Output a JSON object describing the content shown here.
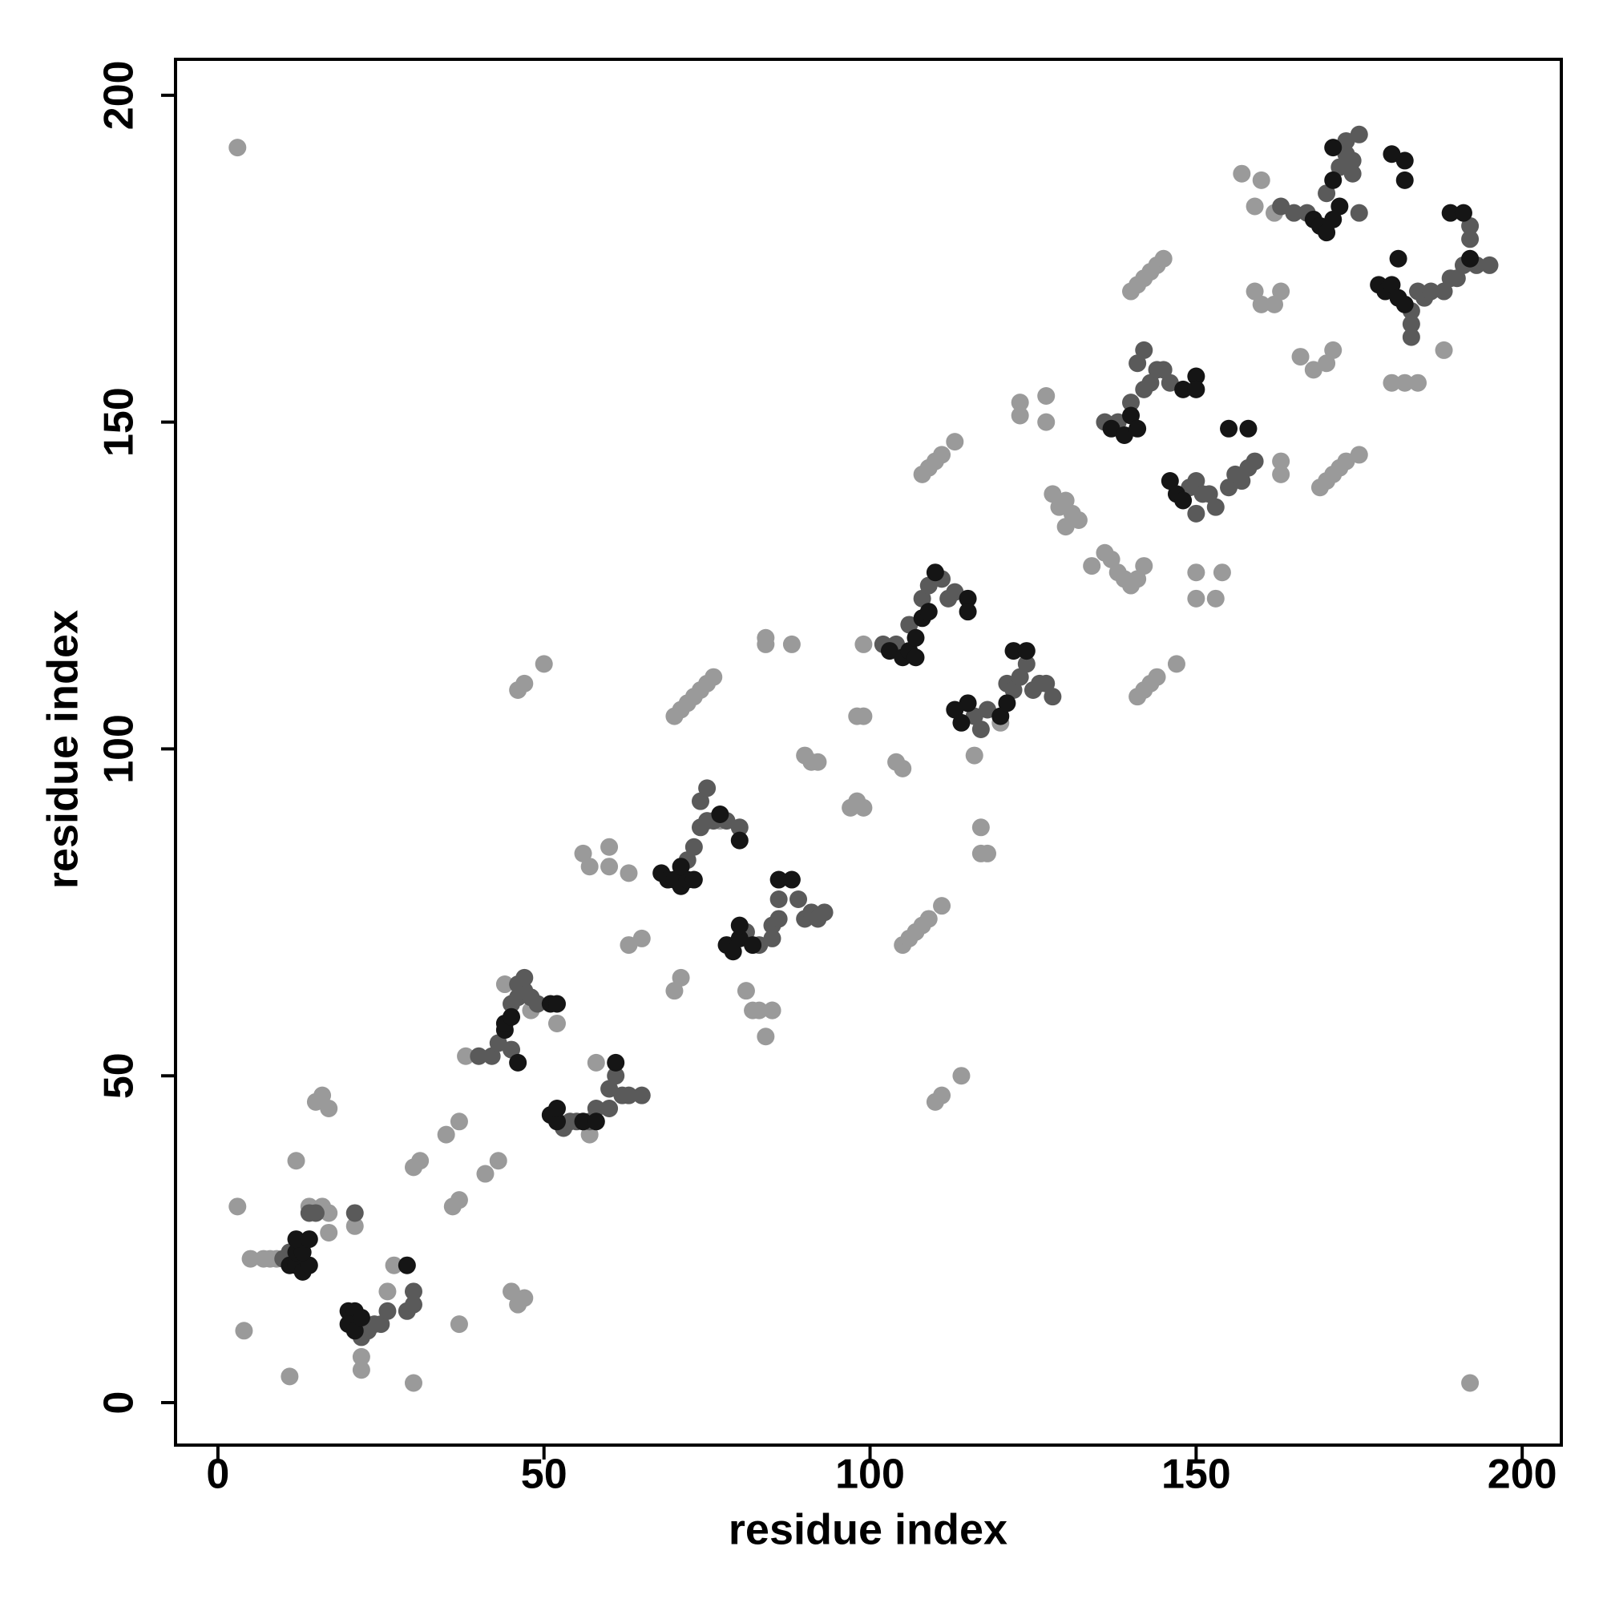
{
  "chart_data": {
    "type": "scatter",
    "xlabel": "residue index",
    "ylabel": "residue index",
    "xlim": [
      -6.5,
      206
    ],
    "ylim": [
      -6.5,
      205.5
    ],
    "xticks": [
      0,
      50,
      100,
      150,
      200
    ],
    "yticks": [
      0,
      50,
      100,
      150,
      200
    ],
    "series": [
      {
        "color": "#9a9a9a",
        "x": [
          3,
          192,
          3,
          4,
          11,
          12,
          5,
          7,
          8,
          9,
          15,
          16,
          17,
          14,
          16,
          17,
          17,
          21,
          22,
          22,
          27,
          26,
          30,
          30,
          31,
          36,
          37,
          37,
          35,
          37,
          41,
          43,
          45,
          46,
          47,
          46,
          47,
          50,
          52,
          56,
          57,
          60,
          60,
          63,
          63,
          65,
          58,
          57,
          70,
          71,
          70,
          71,
          72,
          73,
          74,
          75,
          76,
          84,
          84,
          88,
          99,
          81,
          82,
          83,
          85,
          84,
          108,
          109,
          110,
          111,
          113,
          105,
          106,
          107,
          108,
          109,
          111,
          110,
          111,
          114,
          117,
          117,
          118,
          116,
          120,
          98,
          99,
          97,
          98,
          99,
          90,
          91,
          92,
          104,
          105,
          140,
          141,
          142,
          143,
          144,
          145,
          141,
          142,
          143,
          144,
          147,
          169,
          170,
          171,
          172,
          173,
          175,
          123,
          127,
          123,
          127,
          128,
          129,
          130,
          131,
          132,
          130,
          134,
          136,
          137,
          138,
          139,
          140,
          141,
          142,
          150,
          154,
          150,
          153,
          157,
          159,
          162,
          160,
          159,
          160,
          162,
          163,
          166,
          168,
          170,
          171,
          163,
          163,
          180,
          182,
          184,
          188,
          44,
          48,
          38,
          85,
          77
        ],
        "y": [
          192,
          3,
          30,
          11,
          4,
          37,
          22,
          22,
          22,
          22,
          46,
          47,
          45,
          30,
          30,
          29,
          26,
          27,
          5,
          7,
          21,
          17,
          3,
          36,
          37,
          30,
          31,
          12,
          41,
          43,
          35,
          37,
          17,
          15,
          16,
          109,
          110,
          113,
          58,
          84,
          82,
          85,
          82,
          81,
          70,
          71,
          52,
          41,
          63,
          65,
          105,
          106,
          107,
          108,
          109,
          110,
          111,
          117,
          116,
          116,
          116,
          63,
          60,
          60,
          60,
          56,
          142,
          143,
          144,
          145,
          147,
          70,
          71,
          72,
          73,
          74,
          76,
          46,
          47,
          50,
          88,
          84,
          84,
          99,
          104,
          105,
          105,
          91,
          92,
          91,
          99,
          98,
          98,
          98,
          97,
          170,
          171,
          172,
          173,
          174,
          175,
          108,
          109,
          110,
          111,
          113,
          140,
          141,
          142,
          143,
          144,
          145,
          153,
          154,
          151,
          150,
          139,
          137,
          138,
          136,
          135,
          134,
          128,
          130,
          129,
          127,
          126,
          125,
          126,
          128,
          127,
          127,
          123,
          123,
          188,
          183,
          182,
          187,
          170,
          168,
          168,
          170,
          160,
          158,
          159,
          161,
          144,
          142,
          156,
          156,
          156,
          161,
          64,
          60,
          53,
          60,
          89
        ]
      },
      {
        "color": "#5a5a5a",
        "x": [
          10,
          11,
          14,
          15,
          21,
          29,
          30,
          30,
          22,
          23,
          24,
          25,
          26,
          40,
          42,
          43,
          45,
          46,
          45,
          47,
          48,
          49,
          46,
          47,
          53,
          54,
          55,
          57,
          58,
          60,
          60,
          61,
          62,
          63,
          65,
          72,
          73,
          74,
          75,
          76,
          74,
          75,
          78,
          80,
          81,
          83,
          85,
          85,
          86,
          86,
          89,
          90,
          91,
          92,
          93,
          102,
          104,
          106,
          108,
          109,
          111,
          112,
          113,
          116,
          117,
          118,
          121,
          122,
          123,
          124,
          125,
          126,
          127,
          128,
          136,
          138,
          140,
          142,
          143,
          144,
          145,
          146,
          141,
          142,
          149,
          150,
          151,
          152,
          153,
          155,
          156,
          157,
          158,
          159,
          150,
          163,
          165,
          167,
          170,
          172,
          173,
          174,
          175,
          173,
          174,
          175,
          183,
          184,
          185,
          186,
          188,
          189,
          190,
          191,
          193,
          195,
          183,
          183,
          192,
          192
        ],
        "y": [
          22,
          23,
          29,
          29,
          29,
          14,
          15,
          17,
          10,
          11,
          12,
          12,
          14,
          53,
          53,
          55,
          54,
          62,
          61,
          63,
          62,
          61,
          64,
          65,
          42,
          43,
          43,
          43,
          45,
          45,
          48,
          50,
          47,
          47,
          47,
          83,
          85,
          88,
          89,
          89,
          92,
          94,
          89,
          88,
          72,
          70,
          71,
          73,
          74,
          77,
          77,
          74,
          75,
          74,
          75,
          116,
          116,
          119,
          123,
          125,
          126,
          123,
          124,
          105,
          103,
          106,
          110,
          109,
          111,
          113,
          109,
          110,
          110,
          108,
          150,
          150,
          153,
          155,
          156,
          158,
          158,
          156,
          159,
          161,
          140,
          141,
          139,
          139,
          137,
          140,
          142,
          141,
          143,
          144,
          136,
          183,
          182,
          182,
          185,
          189,
          191,
          190,
          194,
          193,
          188,
          182,
          167,
          170,
          169,
          170,
          170,
          172,
          172,
          174,
          174,
          174,
          163,
          165,
          178,
          180
        ]
      },
      {
        "color": "#151515",
        "x": [
          11,
          12,
          13,
          14,
          12,
          13,
          12,
          14,
          20,
          21,
          20,
          21,
          22,
          29,
          44,
          46,
          44,
          45,
          51,
          52,
          51,
          52,
          52,
          56,
          58,
          61,
          68,
          69,
          70,
          71,
          72,
          73,
          71,
          77,
          80,
          78,
          79,
          80,
          80,
          82,
          86,
          88,
          103,
          105,
          106,
          107,
          108,
          109,
          110,
          115,
          115,
          107,
          113,
          114,
          115,
          120,
          121,
          122,
          124,
          137,
          139,
          140,
          141,
          148,
          150,
          150,
          146,
          147,
          148,
          155,
          158,
          168,
          169,
          170,
          171,
          172,
          171,
          171,
          178,
          179,
          180,
          181,
          182,
          181,
          180,
          182,
          182,
          189,
          191,
          192
        ],
        "y": [
          21,
          21,
          20,
          21,
          23,
          23,
          25,
          25,
          14,
          14,
          12,
          11,
          13,
          21,
          57,
          52,
          58,
          59,
          61,
          61,
          44,
          43,
          45,
          43,
          43,
          52,
          81,
          80,
          80,
          79,
          80,
          80,
          82,
          90,
          86,
          70,
          69,
          71,
          73,
          70,
          80,
          80,
          115,
          114,
          115,
          117,
          120,
          121,
          127,
          123,
          121,
          114,
          106,
          104,
          107,
          105,
          107,
          115,
          115,
          149,
          148,
          151,
          149,
          155,
          157,
          155,
          141,
          139,
          138,
          149,
          149,
          181,
          180,
          179,
          181,
          183,
          187,
          192,
          171,
          170,
          171,
          169,
          168,
          175,
          191,
          190,
          187,
          182,
          182,
          175
        ]
      }
    ]
  }
}
